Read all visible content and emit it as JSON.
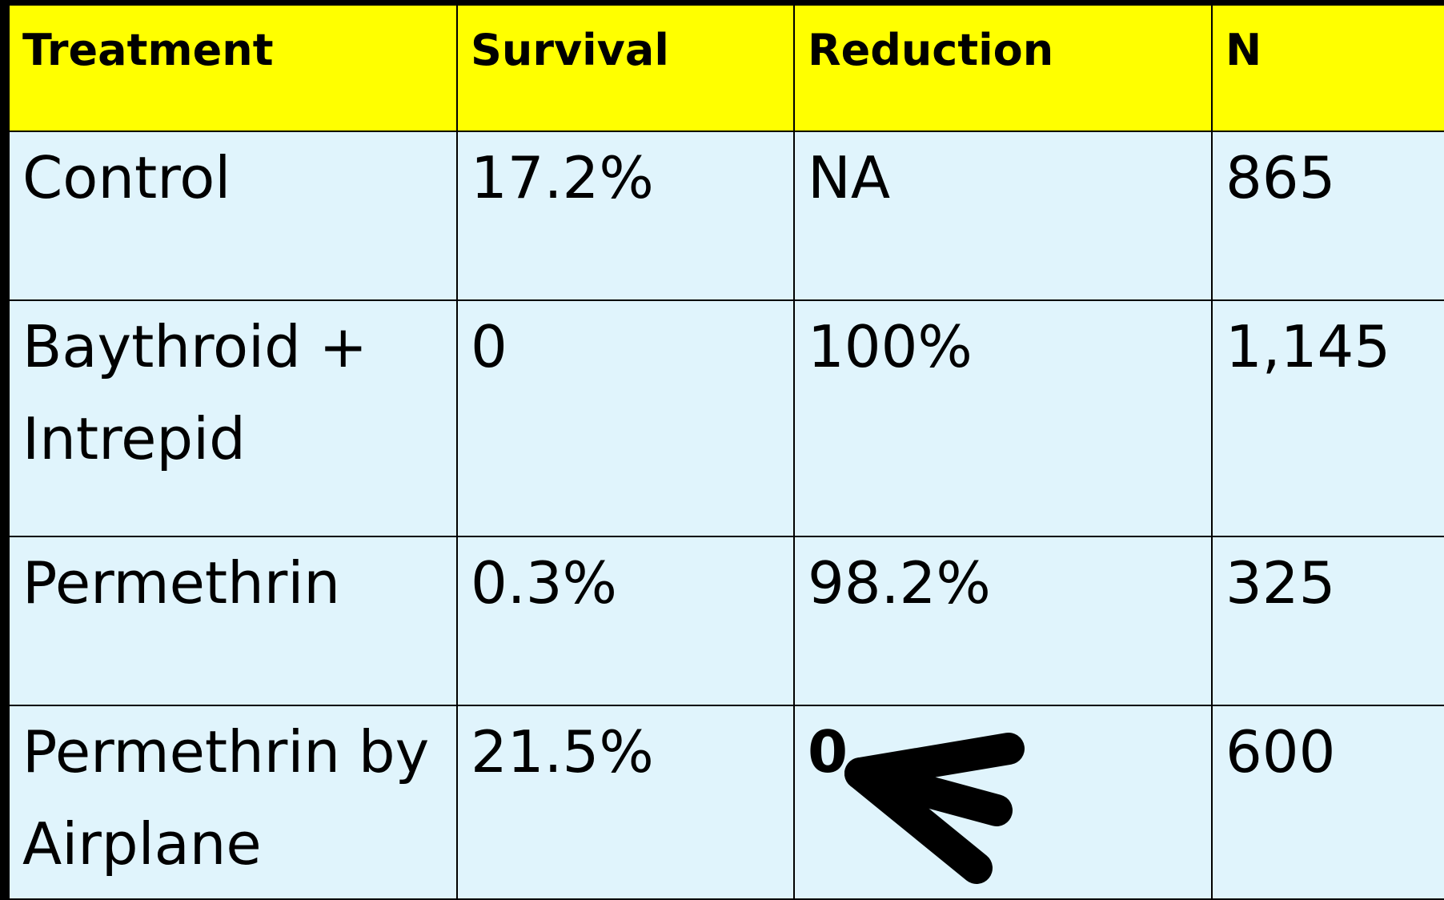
{
  "table": {
    "header": [
      "Treatment",
      "Survival",
      "Reduction",
      "N"
    ],
    "rows": [
      [
        "Control",
        "17.2%",
        "NA",
        "865"
      ],
      [
        "Baythroid + Intrepid",
        "0",
        "100%",
        "1,145"
      ],
      [
        "Permethrin",
        "0.3%",
        "98.2%",
        "325"
      ],
      [
        "Permethrin by Airplane",
        "21.5%",
        "0",
        "600"
      ]
    ]
  }
}
